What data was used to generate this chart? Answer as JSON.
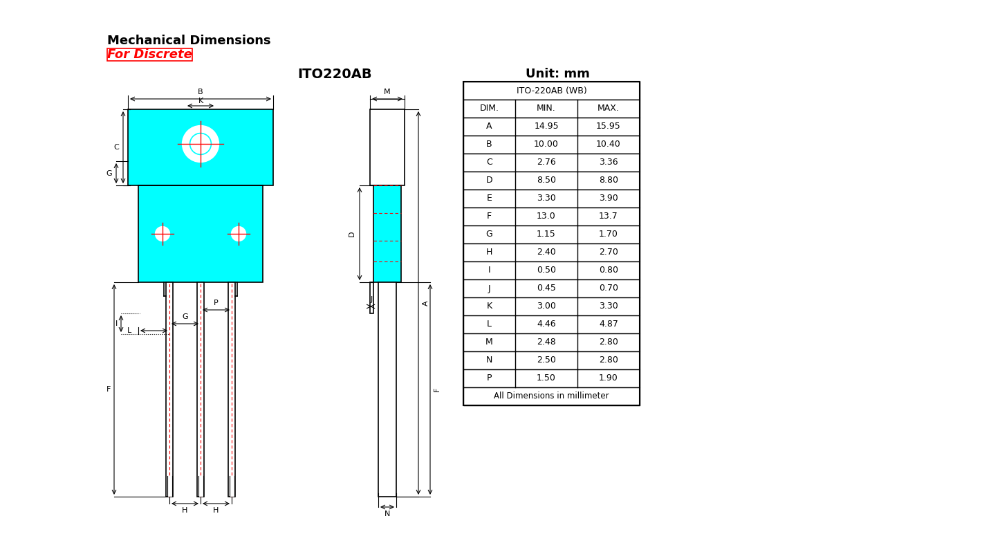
{
  "title1": "Mechanical Dimensions",
  "title2": "For Discrete",
  "subtitle": "ITO220AB",
  "unit": "Unit: mm",
  "bg_color": "#ffffff",
  "cyan": "#00FFFF",
  "red": "#FF0000",
  "black": "#000000",
  "gray": "#555555",
  "table_title": "ITO-220AB (WB)",
  "col_headers": [
    "DIM.",
    "MIN.",
    "MAX."
  ],
  "table_data": [
    [
      "A",
      "14.95",
      "15.95"
    ],
    [
      "B",
      "10.00",
      "10.40"
    ],
    [
      "C",
      "2.76",
      "3.36"
    ],
    [
      "D",
      "8.50",
      "8.80"
    ],
    [
      "E",
      "3.30",
      "3.90"
    ],
    [
      "F",
      "13.0",
      "13.7"
    ],
    [
      "G",
      "1.15",
      "1.70"
    ],
    [
      "H",
      "2.40",
      "2.70"
    ],
    [
      "I",
      "0.50",
      "0.80"
    ],
    [
      "J",
      "0.45",
      "0.70"
    ],
    [
      "K",
      "3.00",
      "3.30"
    ],
    [
      "L",
      "4.46",
      "4.87"
    ],
    [
      "M",
      "2.48",
      "2.80"
    ],
    [
      "N",
      "2.50",
      "2.80"
    ],
    [
      "P",
      "1.50",
      "1.90"
    ]
  ],
  "table_footer": "All Dimensions in millimeter"
}
